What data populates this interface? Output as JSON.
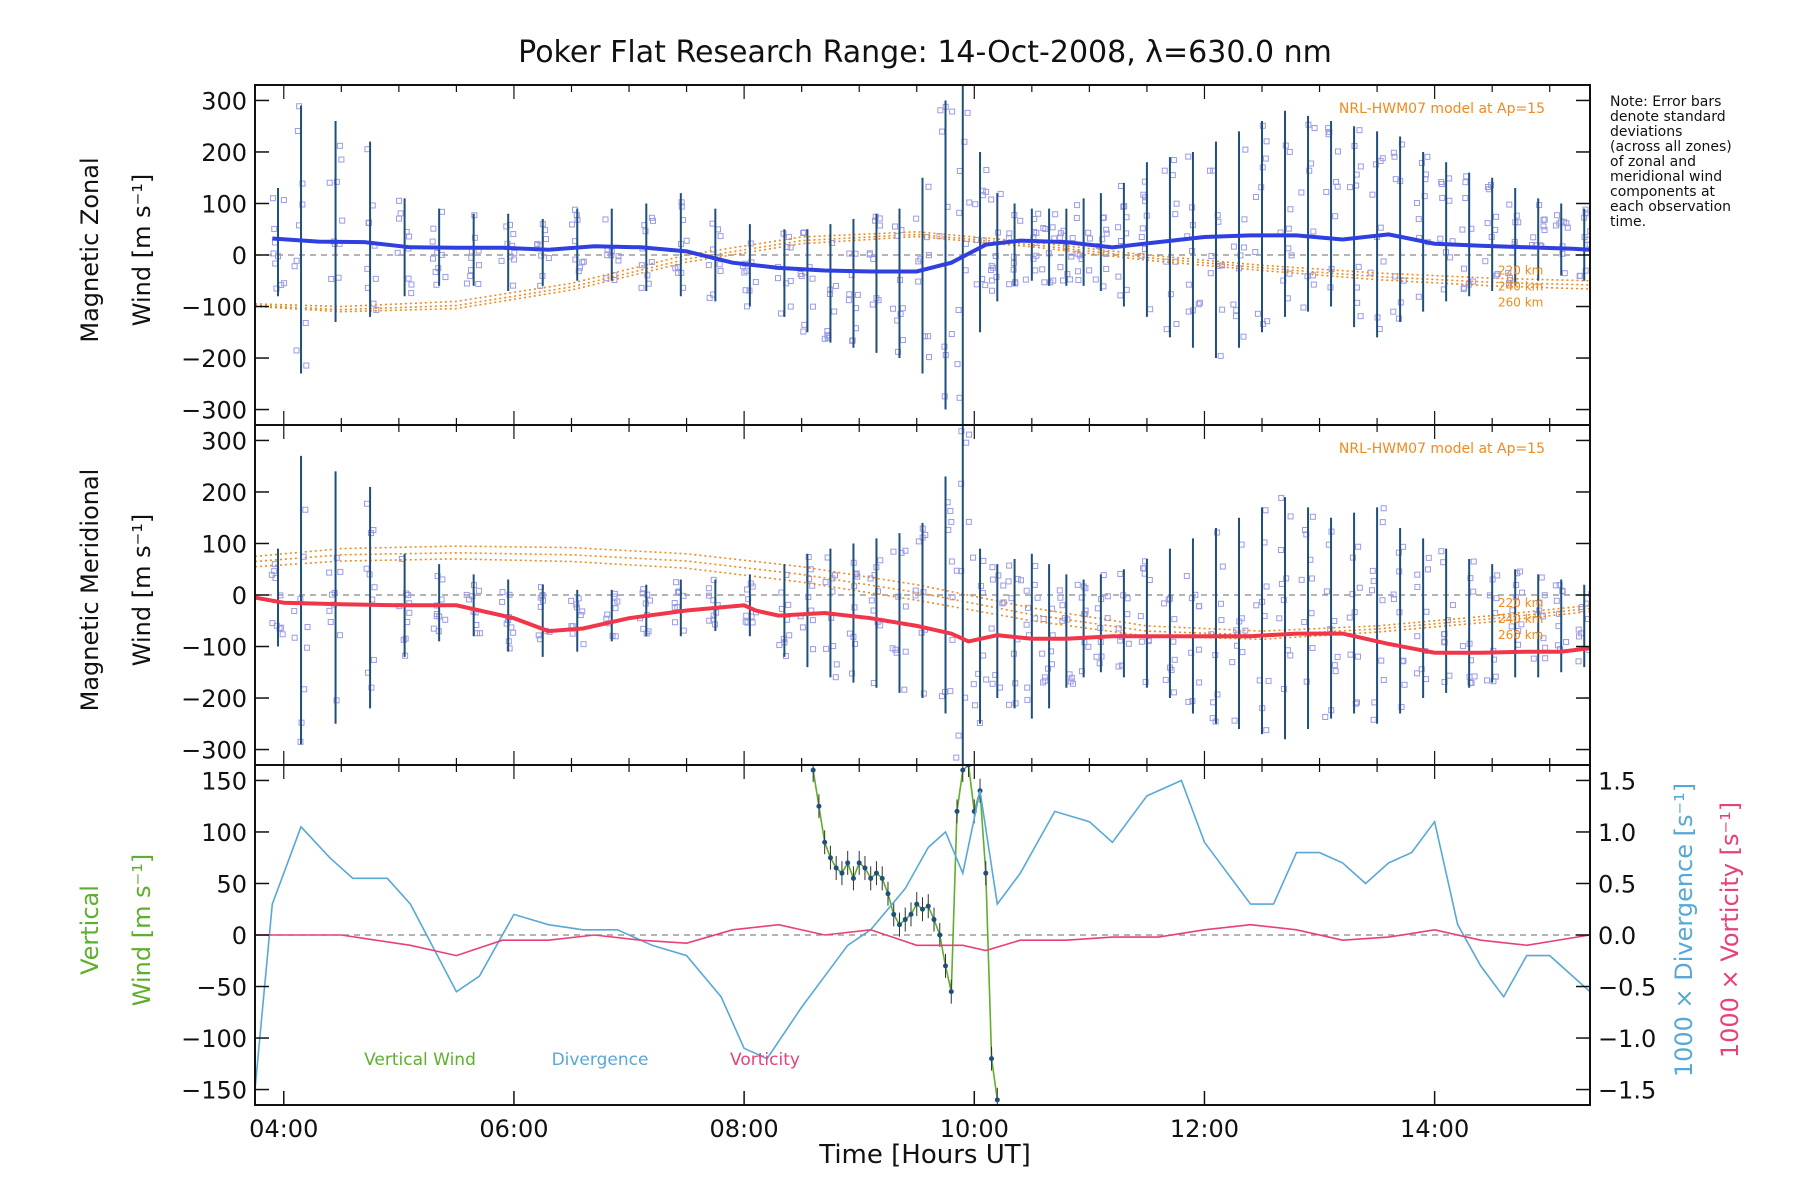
{
  "figure": {
    "title": "Poker Flat Research Range: 14-Oct-2008, λ=630.0 nm",
    "note_lines": [
      "Note: Error bars",
      "denote standard",
      "deviations",
      "(across all zones)",
      "of zonal and",
      "meridional wind",
      "components at",
      "each observation",
      "time."
    ],
    "xlabel": "Time [Hours UT]"
  },
  "colors": {
    "zonal": "#2f3fe0",
    "meridional": "#f0364a",
    "vertical": "#5fae2e",
    "divergence": "#58a8d6",
    "vorticity": "#e8407a",
    "model": "#f08a20",
    "samples": "#9b9be6",
    "errorbar": "#1f4f7a"
  },
  "chart_data": [
    {
      "type": "line",
      "panel": "zonal",
      "ylabel_line1": "Magnetic Zonal",
      "ylabel_line2": "Wind [m s⁻¹]",
      "ylim": [
        -330,
        330
      ],
      "yticks": [
        300,
        200,
        100,
        0,
        -100,
        -200,
        -300
      ],
      "ytick_labels": [
        "300",
        "200",
        "100",
        "0",
        "−100",
        "−200",
        "−300"
      ],
      "model_label": "NRL-HWM07 model at Ap=15",
      "model_heights": [
        "220 km",
        "240 km",
        "260 km"
      ],
      "series": [
        {
          "role": "mean",
          "x": [
            3.9,
            4.3,
            4.7,
            5.1,
            5.5,
            5.9,
            6.3,
            6.7,
            7.1,
            7.5,
            7.9,
            8.3,
            8.7,
            9.1,
            9.5,
            9.8,
            10.1,
            10.4,
            10.8,
            11.2,
            11.6,
            12.0,
            12.4,
            12.8,
            13.2,
            13.6,
            14.0,
            14.4,
            14.8,
            15.2,
            15.35
          ],
          "values": [
            32,
            26,
            25,
            15,
            14,
            14,
            10,
            17,
            15,
            7,
            -15,
            -25,
            -30,
            -32,
            -32,
            -15,
            20,
            28,
            25,
            15,
            25,
            35,
            38,
            38,
            30,
            40,
            22,
            18,
            15,
            12,
            10
          ]
        }
      ],
      "model_curves": [
        {
          "height": "220 km",
          "x": [
            3.75,
            4.5,
            5.5,
            6.5,
            7.5,
            8.5,
            9.5,
            10.5,
            11.5,
            12.5,
            13.5,
            14.5,
            15.35
          ],
          "values": [
            -95,
            -100,
            -90,
            -55,
            0,
            35,
            45,
            25,
            0,
            -20,
            -35,
            -45,
            -50
          ]
        },
        {
          "height": "240 km",
          "x": [
            3.75,
            4.5,
            5.5,
            6.5,
            7.5,
            8.5,
            9.5,
            10.5,
            11.5,
            12.5,
            13.5,
            14.5,
            15.35
          ],
          "values": [
            -98,
            -106,
            -98,
            -62,
            -8,
            28,
            40,
            20,
            -5,
            -25,
            -42,
            -53,
            -58
          ]
        },
        {
          "height": "260 km",
          "x": [
            3.75,
            4.5,
            5.5,
            6.5,
            7.5,
            8.5,
            9.5,
            10.5,
            11.5,
            12.5,
            13.5,
            14.5,
            15.35
          ],
          "values": [
            -100,
            -110,
            -104,
            -68,
            -14,
            22,
            36,
            16,
            -10,
            -30,
            -48,
            -60,
            -66
          ]
        }
      ],
      "error_bars": {
        "x": [
          3.95,
          4.15,
          4.45,
          4.75,
          5.05,
          5.35,
          5.65,
          5.95,
          6.25,
          6.55,
          6.85,
          7.15,
          7.45,
          7.75,
          8.05,
          8.35,
          8.55,
          8.75,
          8.95,
          9.15,
          9.35,
          9.55,
          9.75,
          9.9,
          10.05,
          10.2,
          10.35,
          10.5,
          10.65,
          10.8,
          10.95,
          11.1,
          11.3,
          11.5,
          11.7,
          11.9,
          12.1,
          12.3,
          12.5,
          12.7,
          12.9,
          13.1,
          13.3,
          13.5,
          13.7,
          13.9,
          14.1,
          14.3,
          14.5,
          14.7,
          14.9,
          15.1,
          15.3
        ],
        "lower": [
          -80,
          -230,
          -130,
          -120,
          -80,
          -60,
          -60,
          -70,
          -60,
          -50,
          -50,
          -70,
          -80,
          -90,
          -100,
          -120,
          -150,
          -170,
          -180,
          -190,
          -200,
          -230,
          -300,
          -330,
          -150,
          -90,
          -60,
          -50,
          -60,
          -60,
          -60,
          -70,
          -100,
          -120,
          -160,
          -180,
          -200,
          -180,
          -150,
          -120,
          -110,
          -100,
          -140,
          -160,
          -130,
          -110,
          -90,
          -80,
          -70,
          -60,
          -50,
          -40,
          -50
        ],
        "upper": [
          130,
          290,
          260,
          220,
          110,
          90,
          80,
          80,
          70,
          90,
          90,
          100,
          120,
          90,
          60,
          50,
          50,
          60,
          70,
          80,
          90,
          150,
          300,
          330,
          200,
          120,
          100,
          90,
          90,
          90,
          110,
          120,
          140,
          180,
          190,
          200,
          220,
          240,
          260,
          280,
          270,
          260,
          250,
          240,
          230,
          200,
          180,
          160,
          150,
          130,
          110,
          100,
          90
        ]
      }
    },
    {
      "type": "line",
      "panel": "meridional",
      "ylabel_line1": "Magnetic Meridional",
      "ylabel_line2": "Wind [m s⁻¹]",
      "ylim": [
        -330,
        330
      ],
      "yticks": [
        300,
        200,
        100,
        0,
        -100,
        -200,
        -300
      ],
      "ytick_labels": [
        "300",
        "200",
        "100",
        "0",
        "−100",
        "−200",
        "−300"
      ],
      "model_label": "NRL-HWM07 model at Ap=15",
      "model_heights": [
        "220 km",
        "240 km",
        "260 km"
      ],
      "series": [
        {
          "role": "mean",
          "x": [
            3.75,
            4.0,
            4.5,
            5.0,
            5.5,
            6.0,
            6.3,
            6.6,
            7.0,
            7.5,
            8.0,
            8.1,
            8.3,
            8.7,
            9.1,
            9.5,
            9.8,
            9.95,
            10.2,
            10.5,
            10.8,
            11.2,
            11.6,
            12.0,
            12.4,
            12.8,
            13.2,
            13.6,
            14.0,
            14.4,
            14.8,
            15.1,
            15.35
          ],
          "values": [
            -5,
            -15,
            -18,
            -20,
            -20,
            -45,
            -70,
            -65,
            -45,
            -30,
            -20,
            -30,
            -40,
            -35,
            -45,
            -60,
            -75,
            -90,
            -78,
            -85,
            -85,
            -80,
            -80,
            -80,
            -80,
            -75,
            -75,
            -95,
            -112,
            -112,
            -110,
            -110,
            -103
          ]
        }
      ],
      "model_curves": [
        {
          "height": "220 km",
          "x": [
            3.75,
            4.5,
            5.5,
            6.5,
            7.5,
            8.5,
            9.5,
            10.5,
            11.5,
            12.5,
            13.5,
            14.5,
            15.35
          ],
          "values": [
            75,
            90,
            95,
            92,
            80,
            55,
            20,
            -25,
            -60,
            -70,
            -60,
            -40,
            -20
          ]
        },
        {
          "height": "240 km",
          "x": [
            3.75,
            4.5,
            5.5,
            6.5,
            7.5,
            8.5,
            9.5,
            10.5,
            11.5,
            12.5,
            13.5,
            14.5,
            15.35
          ],
          "values": [
            65,
            78,
            82,
            78,
            66,
            40,
            5,
            -38,
            -70,
            -78,
            -66,
            -46,
            -26
          ]
        },
        {
          "height": "260 km",
          "x": [
            3.75,
            4.5,
            5.5,
            6.5,
            7.5,
            8.5,
            9.5,
            10.5,
            11.5,
            12.5,
            13.5,
            14.5,
            15.35
          ],
          "values": [
            55,
            66,
            70,
            65,
            52,
            25,
            -10,
            -50,
            -80,
            -86,
            -72,
            -52,
            -32
          ]
        }
      ],
      "error_bars": {
        "x": [
          3.95,
          4.15,
          4.45,
          4.75,
          5.05,
          5.35,
          5.65,
          5.95,
          6.25,
          6.55,
          6.85,
          7.15,
          7.45,
          7.75,
          8.05,
          8.35,
          8.55,
          8.75,
          8.95,
          9.15,
          9.35,
          9.55,
          9.75,
          9.9,
          10.05,
          10.2,
          10.35,
          10.5,
          10.65,
          10.8,
          10.95,
          11.1,
          11.3,
          11.5,
          11.7,
          11.9,
          12.1,
          12.3,
          12.5,
          12.7,
          12.9,
          13.1,
          13.3,
          13.5,
          13.7,
          13.9,
          14.1,
          14.3,
          14.5,
          14.7,
          14.9,
          15.1,
          15.3
        ],
        "lower": [
          -100,
          -290,
          -250,
          -220,
          -120,
          -90,
          -80,
          -110,
          -120,
          -110,
          -90,
          -80,
          -80,
          -70,
          -80,
          -120,
          -140,
          -160,
          -170,
          -180,
          -190,
          -200,
          -230,
          -330,
          -250,
          -200,
          -220,
          -240,
          -220,
          -180,
          -160,
          -150,
          -160,
          -180,
          -200,
          -230,
          -250,
          -260,
          -270,
          -280,
          -260,
          -240,
          -230,
          -250,
          -230,
          -200,
          -190,
          -180,
          -170,
          -160,
          -160,
          -150,
          -140
        ],
        "upper": [
          90,
          270,
          240,
          210,
          80,
          60,
          40,
          30,
          20,
          10,
          10,
          20,
          30,
          30,
          40,
          60,
          80,
          90,
          100,
          110,
          120,
          140,
          230,
          330,
          90,
          60,
          70,
          80,
          60,
          40,
          30,
          40,
          50,
          70,
          90,
          110,
          130,
          150,
          170,
          190,
          170,
          150,
          160,
          170,
          130,
          110,
          90,
          70,
          60,
          50,
          40,
          30,
          20
        ]
      }
    },
    {
      "type": "line",
      "panel": "vertical",
      "ylabel_line1": "Vertical",
      "ylabel_line2": "Wind [m s⁻¹]",
      "ylim": [
        -165,
        165
      ],
      "yticks": [
        150,
        100,
        50,
        0,
        -50,
        -100,
        -150
      ],
      "ytick_labels": [
        "150",
        "100",
        "50",
        "0",
        "−50",
        "−100",
        "−150"
      ],
      "y2lim": [
        -1.65,
        1.65
      ],
      "y2ticks": [
        1.5,
        1.0,
        0.5,
        0.0,
        -0.5,
        -1.0,
        -1.5
      ],
      "y2tick_labels": [
        "1.5",
        "1.0",
        "0.5",
        "0.0",
        "−0.5",
        "−1.0",
        "−1.5"
      ],
      "y2label_div": "1000 × Divergence [s⁻¹]",
      "y2label_vor": "1000 × Vorticity [s⁻¹]",
      "legend": [
        "Vertical Wind",
        "Divergence",
        "Vorticity"
      ],
      "xticks": [
        4,
        6,
        8,
        10,
        12,
        14
      ],
      "xtick_labels": [
        "04:00",
        "06:00",
        "08:00",
        "10:00",
        "12:00",
        "14:00"
      ],
      "xlim": [
        3.75,
        15.35
      ],
      "series": [
        {
          "name": "Vertical Wind",
          "x": [
            8.6,
            8.65,
            8.7,
            8.75,
            8.8,
            8.85,
            8.9,
            8.95,
            9.0,
            9.05,
            9.1,
            9.15,
            9.2,
            9.25,
            9.3,
            9.35,
            9.4,
            9.45,
            9.5,
            9.55,
            9.6,
            9.65,
            9.7,
            9.75,
            9.8,
            9.85,
            9.9,
            9.95,
            10.0,
            10.05,
            10.1,
            10.15,
            10.2
          ],
          "values": [
            160,
            125,
            90,
            75,
            65,
            60,
            70,
            55,
            70,
            65,
            55,
            60,
            55,
            40,
            20,
            10,
            15,
            20,
            30,
            25,
            28,
            15,
            0,
            -30,
            -55,
            120,
            160,
            165,
            120,
            140,
            60,
            -120,
            -160
          ]
        },
        {
          "name": "Divergence",
          "axis": "right",
          "x": [
            3.75,
            3.9,
            4.15,
            4.4,
            4.6,
            4.9,
            5.1,
            5.5,
            5.7,
            6.0,
            6.3,
            6.6,
            6.9,
            7.2,
            7.5,
            7.8,
            8.0,
            8.2,
            8.5,
            8.7,
            8.9,
            9.1,
            9.4,
            9.6,
            9.75,
            9.9,
            10.05,
            10.2,
            10.4,
            10.7,
            11.0,
            11.2,
            11.5,
            11.8,
            12.0,
            12.2,
            12.4,
            12.6,
            12.8,
            13.0,
            13.2,
            13.4,
            13.6,
            13.8,
            14.0,
            14.2,
            14.4,
            14.6,
            14.8,
            15.0,
            15.35
          ],
          "values": [
            -1.5,
            0.3,
            1.05,
            0.75,
            0.55,
            0.55,
            0.3,
            -0.55,
            -0.4,
            0.2,
            0.1,
            0.05,
            0.05,
            -0.1,
            -0.2,
            -0.6,
            -1.1,
            -1.2,
            -0.7,
            -0.4,
            -0.1,
            0.05,
            0.45,
            0.85,
            1.0,
            0.6,
            1.4,
            0.3,
            0.6,
            1.2,
            1.1,
            0.9,
            1.35,
            1.5,
            0.9,
            0.6,
            0.3,
            0.3,
            0.8,
            0.8,
            0.7,
            0.5,
            0.7,
            0.8,
            1.1,
            0.1,
            -0.3,
            -0.6,
            -0.2,
            -0.2,
            -0.55
          ]
        },
        {
          "name": "Vorticity",
          "axis": "right",
          "x": [
            3.75,
            4.1,
            4.5,
            4.8,
            5.1,
            5.5,
            5.9,
            6.3,
            6.7,
            7.1,
            7.5,
            7.9,
            8.3,
            8.7,
            9.1,
            9.5,
            9.9,
            10.1,
            10.4,
            10.8,
            11.2,
            11.6,
            12.0,
            12.4,
            12.8,
            13.2,
            13.6,
            14.0,
            14.4,
            14.8,
            15.35
          ],
          "values": [
            0.0,
            0.0,
            0.0,
            -0.05,
            -0.1,
            -0.2,
            -0.05,
            -0.05,
            0.0,
            -0.05,
            -0.08,
            0.05,
            0.1,
            0.0,
            0.05,
            -0.1,
            -0.1,
            -0.15,
            -0.05,
            -0.05,
            -0.02,
            -0.02,
            0.05,
            0.1,
            0.05,
            -0.05,
            -0.02,
            0.05,
            -0.05,
            -0.1,
            0.0
          ]
        }
      ]
    }
  ]
}
